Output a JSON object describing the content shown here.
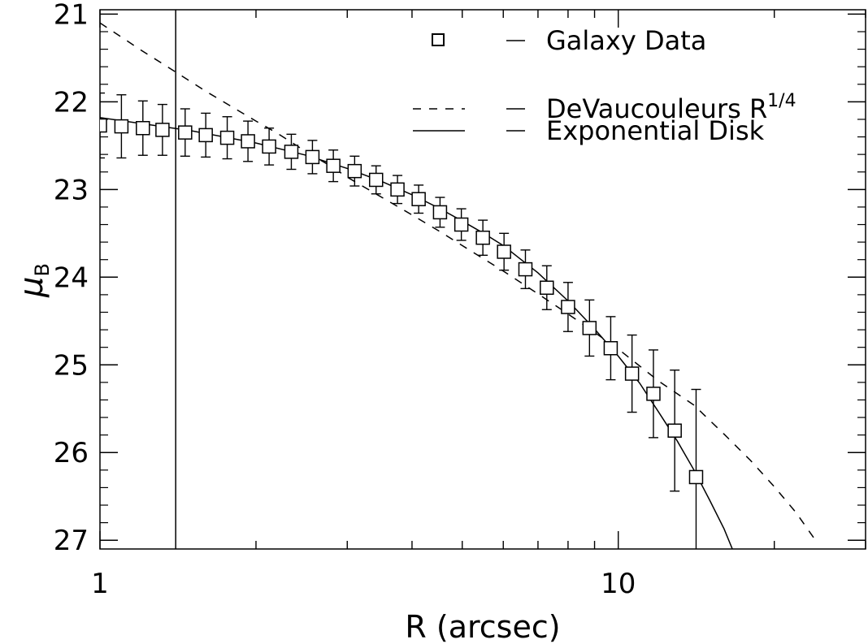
{
  "chart_data": {
    "type": "scatter",
    "x_scale": "log",
    "y_reversed": true,
    "xlim": [
      1,
      30
    ],
    "ylim": [
      27.1,
      20.95
    ],
    "xlabel": "R (arcsec)",
    "ylabel_main": "μ",
    "ylabel_sub": "B",
    "x_tick_labels": [
      {
        "value": 1,
        "label": "1"
      },
      {
        "value": 10,
        "label": "10"
      }
    ],
    "y_tick_labels": [
      {
        "value": 21,
        "label": "21"
      },
      {
        "value": 22,
        "label": "22"
      },
      {
        "value": 23,
        "label": "23"
      },
      {
        "value": 24,
        "label": "24"
      },
      {
        "value": 25,
        "label": "25"
      },
      {
        "value": 26,
        "label": "26"
      },
      {
        "value": 27,
        "label": "27"
      }
    ],
    "vertical_line_x": 1.4,
    "series": [
      {
        "name": "Galaxy Data",
        "marker": "square",
        "points": [
          {
            "x": 1.0,
            "y": 22.27,
            "err": 0.37
          },
          {
            "x": 1.1,
            "y": 22.28,
            "err": 0.36
          },
          {
            "x": 1.21,
            "y": 22.3,
            "err": 0.31
          },
          {
            "x": 1.32,
            "y": 22.32,
            "err": 0.29
          },
          {
            "x": 1.46,
            "y": 22.35,
            "err": 0.27
          },
          {
            "x": 1.6,
            "y": 22.38,
            "err": 0.25
          },
          {
            "x": 1.76,
            "y": 22.41,
            "err": 0.24
          },
          {
            "x": 1.93,
            "y": 22.45,
            "err": 0.23
          },
          {
            "x": 2.12,
            "y": 22.51,
            "err": 0.21
          },
          {
            "x": 2.34,
            "y": 22.57,
            "err": 0.2
          },
          {
            "x": 2.57,
            "y": 22.63,
            "err": 0.19
          },
          {
            "x": 2.82,
            "y": 22.73,
            "err": 0.18
          },
          {
            "x": 3.1,
            "y": 22.79,
            "err": 0.17
          },
          {
            "x": 3.41,
            "y": 22.89,
            "err": 0.16
          },
          {
            "x": 3.75,
            "y": 23.0,
            "err": 0.16
          },
          {
            "x": 4.12,
            "y": 23.11,
            "err": 0.16
          },
          {
            "x": 4.53,
            "y": 23.26,
            "err": 0.17
          },
          {
            "x": 4.98,
            "y": 23.4,
            "err": 0.18
          },
          {
            "x": 5.48,
            "y": 23.55,
            "err": 0.2
          },
          {
            "x": 6.02,
            "y": 23.71,
            "err": 0.21
          },
          {
            "x": 6.62,
            "y": 23.91,
            "err": 0.22
          },
          {
            "x": 7.28,
            "y": 24.12,
            "err": 0.25
          },
          {
            "x": 8.0,
            "y": 24.34,
            "err": 0.28
          },
          {
            "x": 8.8,
            "y": 24.58,
            "err": 0.32
          },
          {
            "x": 9.67,
            "y": 24.81,
            "err": 0.36
          },
          {
            "x": 10.63,
            "y": 25.1,
            "err": 0.44
          },
          {
            "x": 11.69,
            "y": 25.33,
            "err": 0.5
          },
          {
            "x": 12.85,
            "y": 25.75,
            "err": 0.69
          },
          {
            "x": 14.13,
            "y": 26.28,
            "err": 1.0
          }
        ]
      },
      {
        "name": "DeVaucouleurs R",
        "name_superscript": "1/4",
        "style": "dashed",
        "curve": [
          [
            1.0,
            21.1
          ],
          [
            1.2,
            21.41
          ],
          [
            1.4,
            21.66
          ],
          [
            1.6,
            21.88
          ],
          [
            1.8,
            22.06
          ],
          [
            2.0,
            22.22
          ],
          [
            2.2,
            22.36
          ],
          [
            2.5,
            22.57
          ],
          [
            2.8,
            22.74
          ],
          [
            3.0,
            22.86
          ],
          [
            3.5,
            23.09
          ],
          [
            4.0,
            23.29
          ],
          [
            4.5,
            23.47
          ],
          [
            5.0,
            23.64
          ],
          [
            6.0,
            23.93
          ],
          [
            7.0,
            24.19
          ],
          [
            8.0,
            24.42
          ],
          [
            9.0,
            24.63
          ],
          [
            10.0,
            24.82
          ],
          [
            12.0,
            25.19
          ],
          [
            14.0,
            25.46
          ],
          [
            16.0,
            25.79
          ],
          [
            18.0,
            26.09
          ],
          [
            20.0,
            26.39
          ],
          [
            22.0,
            26.68
          ],
          [
            23.88,
            26.98
          ]
        ]
      },
      {
        "name": "Exponential Disk",
        "style": "solid",
        "curve": [
          [
            1.0,
            22.18
          ],
          [
            1.5,
            22.33
          ],
          [
            2.0,
            22.47
          ],
          [
            2.5,
            22.61
          ],
          [
            3.0,
            22.76
          ],
          [
            3.5,
            22.91
          ],
          [
            4.0,
            23.06
          ],
          [
            4.5,
            23.21
          ],
          [
            5.0,
            23.36
          ],
          [
            5.5,
            23.5
          ],
          [
            6.0,
            23.64
          ],
          [
            7.0,
            23.95
          ],
          [
            8.0,
            24.27
          ],
          [
            9.0,
            24.59
          ],
          [
            10.0,
            24.9
          ],
          [
            11.0,
            25.21
          ],
          [
            12.0,
            25.55
          ],
          [
            13.0,
            25.87
          ],
          [
            14.0,
            26.2
          ],
          [
            15.0,
            26.54
          ],
          [
            16.0,
            26.87
          ],
          [
            16.6,
            27.1
          ]
        ]
      }
    ],
    "legend_placement": "top-right"
  }
}
